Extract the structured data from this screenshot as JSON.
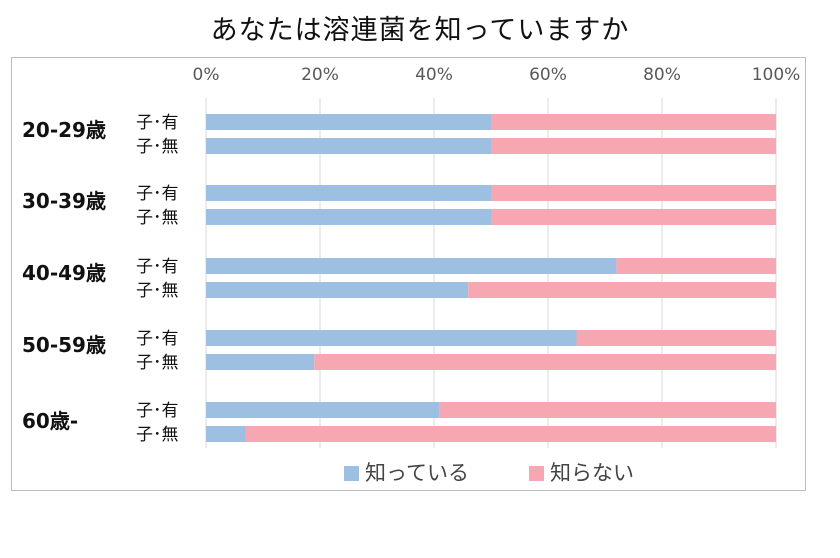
{
  "title": "あなたは溶連菌を知っていますか",
  "colors": {
    "known": "#9dbfe2",
    "unknown": "#f7a7b2",
    "grid": "#d9d9d9",
    "frame": "#bdbdbd"
  },
  "chart_data": {
    "type": "bar",
    "orientation": "horizontal",
    "stacked": "percent",
    "title": "あなたは溶連菌を知っていますか",
    "x_ticks": [
      "0%",
      "20%",
      "40%",
      "60%",
      "80%",
      "100%"
    ],
    "xlim": [
      0,
      100
    ],
    "grid": true,
    "legend_position": "bottom",
    "groups": [
      {
        "label": "20-29歳",
        "rows": [
          {
            "label": "子･有",
            "known": 50,
            "unknown": 50
          },
          {
            "label": "子･無",
            "known": 50,
            "unknown": 50
          }
        ]
      },
      {
        "label": "30-39歳",
        "rows": [
          {
            "label": "子･有",
            "known": 50,
            "unknown": 50
          },
          {
            "label": "子･無",
            "known": 50,
            "unknown": 50
          }
        ]
      },
      {
        "label": "40-49歳",
        "rows": [
          {
            "label": "子･有",
            "known": 72,
            "unknown": 28
          },
          {
            "label": "子･無",
            "known": 46,
            "unknown": 54
          }
        ]
      },
      {
        "label": "50-59歳",
        "rows": [
          {
            "label": "子･有",
            "known": 65,
            "unknown": 35
          },
          {
            "label": "子･無",
            "known": 19,
            "unknown": 81
          }
        ]
      },
      {
        "label": "60歳-",
        "rows": [
          {
            "label": "子･有",
            "known": 41,
            "unknown": 59
          },
          {
            "label": "子･無",
            "known": 7,
            "unknown": 93
          }
        ]
      }
    ],
    "series": [
      {
        "key": "known",
        "name": "知っている"
      },
      {
        "key": "unknown",
        "name": "知らない"
      }
    ]
  }
}
